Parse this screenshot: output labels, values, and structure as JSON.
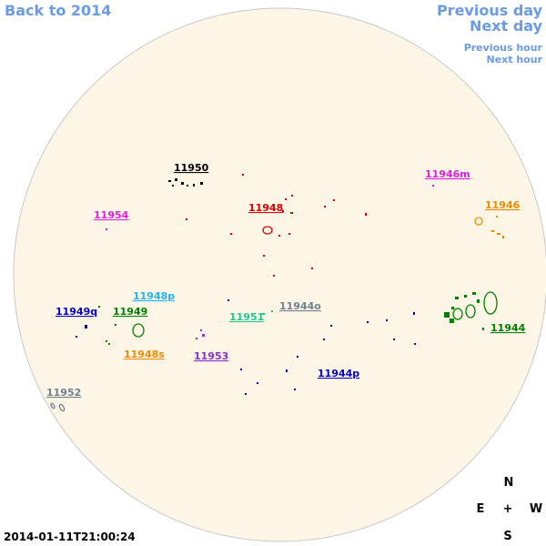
{
  "nav": {
    "back": "Back to 2014",
    "previous_day": "Previous day",
    "next_day": "Next day",
    "previous_hour": "Previous hour",
    "next_hour": "Next hour"
  },
  "regions": [
    {
      "label": "11950",
      "color": "#000000"
    },
    {
      "label": "11948",
      "color": "#e00000"
    },
    {
      "label": "11954",
      "color": "#e020e0"
    },
    {
      "label": "11946m",
      "color": "#e020e0"
    },
    {
      "label": "11946",
      "color": "#f08a00"
    },
    {
      "label": "11948p",
      "color": "#20b4f0"
    },
    {
      "label": "11944o",
      "color": "#708090"
    },
    {
      "label": "11949q",
      "color": "#0000c8"
    },
    {
      "label": "11949",
      "color": "#008000"
    },
    {
      "label": "11951",
      "color": "#20c890"
    },
    {
      "label": "11944",
      "color": "#008000"
    },
    {
      "label": "11948s",
      "color": "#f08a00"
    },
    {
      "label": "11953",
      "color": "#8a30c8"
    },
    {
      "label": "11944p",
      "color": "#0000c8"
    },
    {
      "label": "11952",
      "color": "#708090"
    }
  ],
  "compass": {
    "north": "N",
    "east": "E",
    "center": "+",
    "west": "W",
    "south": "S"
  },
  "timestamp": "2014-01-11T21:00:24"
}
